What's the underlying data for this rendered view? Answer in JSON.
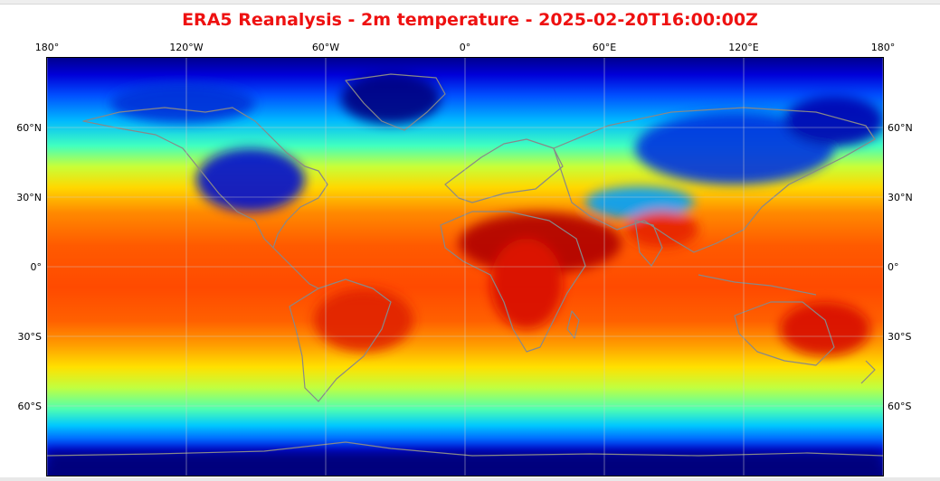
{
  "title": {
    "text": "ERA5 Reanalysis - 2m temperature - 2025-02-20T16:00:00Z",
    "color": "#ee1111"
  },
  "map": {
    "projection": "PlateCarree",
    "lon_range": [
      -180,
      180
    ],
    "lat_range": [
      -90,
      90
    ],
    "colormap": "jet",
    "gridlines": true,
    "coastline_color": "#888888",
    "lon_ticks": [
      {
        "lon": -180,
        "label": "180°"
      },
      {
        "lon": -120,
        "label": "120°W"
      },
      {
        "lon": -60,
        "label": "60°W"
      },
      {
        "lon": 0,
        "label": "0°"
      },
      {
        "lon": 60,
        "label": "60°E"
      },
      {
        "lon": 120,
        "label": "120°E"
      },
      {
        "lon": 180,
        "label": "180°"
      }
    ],
    "lat_ticks": [
      {
        "lat": 60,
        "label": "60°N"
      },
      {
        "lat": 30,
        "label": "30°N"
      },
      {
        "lat": 0,
        "label": "0°"
      },
      {
        "lat": -30,
        "label": "30°S"
      },
      {
        "lat": -60,
        "label": "60°S"
      }
    ]
  }
}
